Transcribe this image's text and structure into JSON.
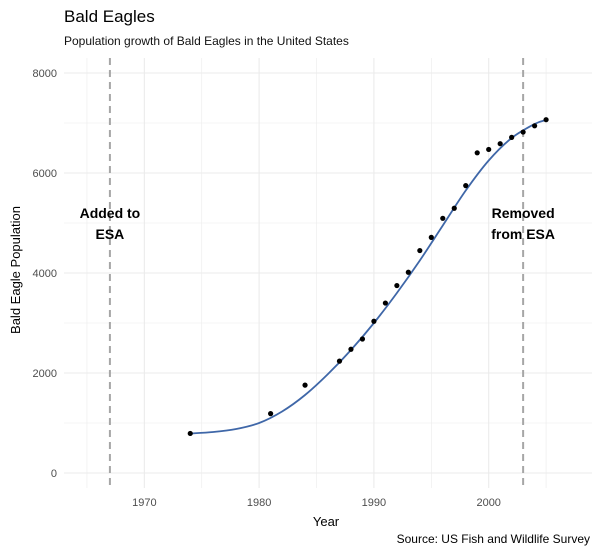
{
  "chart_data": {
    "type": "scatter",
    "title": "Bald Eagles",
    "subtitle": "Population growth of Bald Eagles in the United States",
    "xlabel": "Year",
    "ylabel": "Bald Eagle Population",
    "caption": "Source: US Fish and Wildlife Survey",
    "xlim": [
      1963,
      2009
    ],
    "ylim": [
      -300,
      8300
    ],
    "x_ticks": [
      1970,
      1980,
      1990,
      2000
    ],
    "y_ticks": [
      0,
      2000,
      4000,
      6000,
      8000
    ],
    "grid": true,
    "points": [
      {
        "x": 1974,
        "y": 791
      },
      {
        "x": 1981,
        "y": 1188
      },
      {
        "x": 1984,
        "y": 1757
      },
      {
        "x": 1987,
        "y": 2238
      },
      {
        "x": 1988,
        "y": 2475
      },
      {
        "x": 1989,
        "y": 2680
      },
      {
        "x": 1990,
        "y": 3035
      },
      {
        "x": 1991,
        "y": 3399
      },
      {
        "x": 1992,
        "y": 3749
      },
      {
        "x": 1993,
        "y": 4015
      },
      {
        "x": 1994,
        "y": 4449
      },
      {
        "x": 1995,
        "y": 4712
      },
      {
        "x": 1996,
        "y": 5094
      },
      {
        "x": 1997,
        "y": 5295
      },
      {
        "x": 1998,
        "y": 5748
      },
      {
        "x": 1999,
        "y": 6404
      },
      {
        "x": 2000,
        "y": 6471
      },
      {
        "x": 2001,
        "y": 6586
      },
      {
        "x": 2002,
        "y": 6712
      },
      {
        "x": 2003,
        "y": 6819
      },
      {
        "x": 2004,
        "y": 6944
      },
      {
        "x": 2005,
        "y": 7066
      }
    ],
    "trend_line": {
      "color": "#3f67a8",
      "points": [
        [
          1974,
          790
        ],
        [
          1976,
          820
        ],
        [
          1978,
          880
        ],
        [
          1980,
          1000
        ],
        [
          1982,
          1230
        ],
        [
          1984,
          1560
        ],
        [
          1986,
          1980
        ],
        [
          1988,
          2460
        ],
        [
          1990,
          3000
        ],
        [
          1992,
          3600
        ],
        [
          1994,
          4250
        ],
        [
          1996,
          4950
        ],
        [
          1998,
          5650
        ],
        [
          2000,
          6250
        ],
        [
          2002,
          6700
        ],
        [
          2004,
          6980
        ],
        [
          2005,
          7060
        ]
      ]
    },
    "reference_lines": [
      {
        "x": 1967,
        "label_lines": [
          "Added to",
          "ESA"
        ],
        "label_y": 5100
      },
      {
        "x": 2003,
        "label_lines": [
          "Removed",
          "from ESA"
        ],
        "label_y": 5100
      }
    ],
    "colors": {
      "points": "#000000",
      "reference": "#a6a6a6",
      "grid": "#ebebeb"
    }
  }
}
